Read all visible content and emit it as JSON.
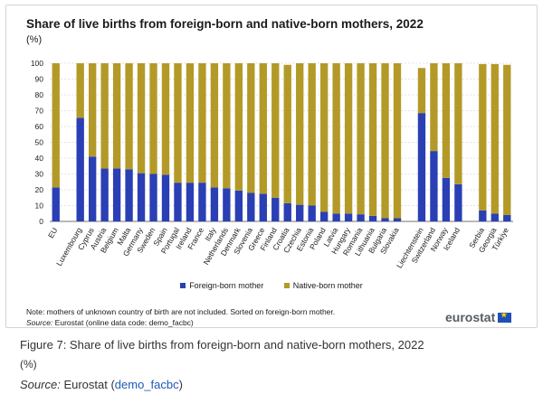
{
  "title": "Share of live births from foreign-born and native-born mothers, 2022",
  "unit": "(%)",
  "note": "Note: mothers of unknown country of birth are not included. Sorted on foreign-born mother.",
  "source_label": "Source:",
  "source_text": "Eurostat (online data code: demo_facbc)",
  "logo_text": "eurostat",
  "caption": {
    "figure": "Figure 7: Share of live births from foreign-born and native-born mothers, 2022",
    "unit": "(%)",
    "source_label": "Source:",
    "source_text": "Eurostat (",
    "source_link": "demo_facbc",
    "source_close": ")"
  },
  "colors": {
    "foreign": "#2a3fb4",
    "native": "#b39a28"
  },
  "chart_data": {
    "type": "bar",
    "stacked": true,
    "ylim": [
      0,
      100
    ],
    "yticks": [
      0,
      10,
      20,
      30,
      40,
      50,
      60,
      70,
      80,
      90,
      100
    ],
    "grid": true,
    "legend_position": "bottom",
    "categories": [
      "EU",
      "",
      "Luxembourg",
      "Cyprus",
      "Austria",
      "Belgium",
      "Malta",
      "Germany",
      "Sweden",
      "Spain",
      "Portugal",
      "Ireland",
      "France",
      "Italy",
      "Netherlands",
      "Denmark",
      "Slovenia",
      "Greece",
      "Finland",
      "Croatia",
      "Czechia",
      "Estonia",
      "Poland",
      "Latvia",
      "Hungary",
      "Romania",
      "Lithuania",
      "Bulgaria",
      "Slovakia",
      "",
      "Liechtenstein",
      "Switzerland",
      "Norway",
      "Iceland",
      "",
      "Serbia",
      "Georgia",
      "Türkiye"
    ],
    "series": [
      {
        "name": "Foreign-born mother",
        "values": [
          21.5,
          null,
          65.5,
          41,
          33.5,
          33.5,
          33,
          30.5,
          30,
          29.5,
          24.5,
          24.5,
          24.5,
          21.5,
          21,
          19.5,
          18,
          17.5,
          15,
          11.5,
          10.5,
          10,
          6,
          5,
          5,
          4.5,
          3.5,
          2,
          2,
          null,
          68.5,
          44.5,
          27.5,
          23.5,
          null,
          7,
          5,
          4
        ]
      },
      {
        "name": "Native-born mother",
        "values": [
          78.5,
          null,
          34.5,
          59,
          66.5,
          66.5,
          67,
          69.5,
          70,
          70.5,
          75.5,
          75.5,
          75.5,
          78.5,
          79,
          80.5,
          82,
          82.5,
          85,
          87.5,
          89.5,
          90,
          94,
          95,
          95,
          95.5,
          96.5,
          98,
          98,
          null,
          28.5,
          55.5,
          72.5,
          76.5,
          null,
          92.5,
          94.5,
          95
        ]
      }
    ]
  }
}
